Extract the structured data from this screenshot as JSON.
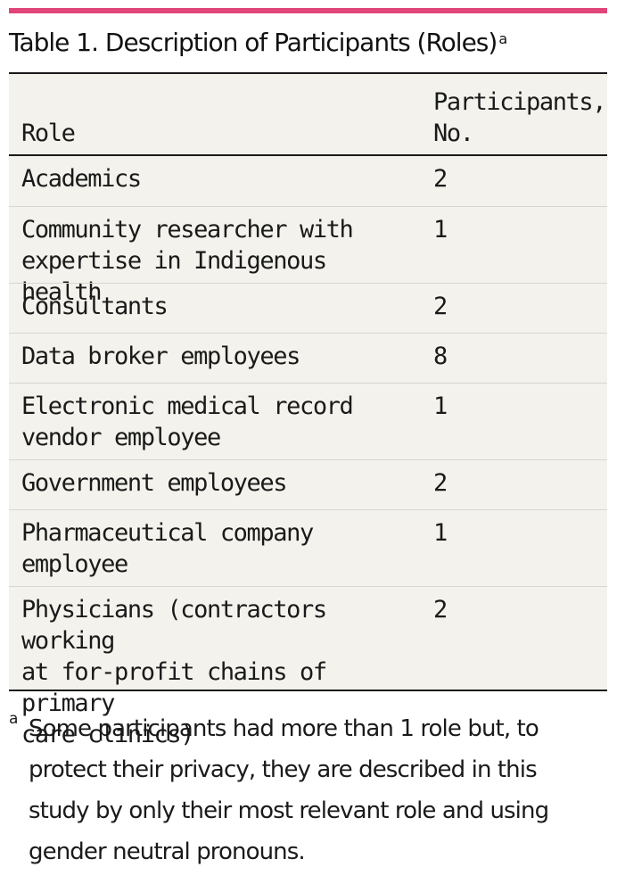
{
  "table": {
    "title": "Table 1. Description of Participants (Roles)",
    "title_footnote_mark": "a",
    "headers": {
      "role": "Role",
      "participants": "Participants,\nNo."
    },
    "rows": [
      {
        "role": "Academics",
        "count": "2"
      },
      {
        "role": "Community researcher with\nexpertise in Indigenous health",
        "count": "1"
      },
      {
        "role": "Consultants",
        "count": "2"
      },
      {
        "role": "Data broker employees",
        "count": "8"
      },
      {
        "role": "Electronic medical record\nvendor employee",
        "count": "1"
      },
      {
        "role": "Government employees",
        "count": "2"
      },
      {
        "role": "Pharmaceutical company\nemployee",
        "count": "1"
      },
      {
        "role": "Physicians (contractors working\nat for-profit chains of primary\ncare clinics)",
        "count": "2"
      }
    ],
    "footnote": {
      "mark": "a",
      "text": "Some participants had more than 1 role but, to protect their privacy, they are described in this study by only their most relevant role and using gender neutral pronouns."
    }
  },
  "colors": {
    "accent_rule": "#e0457a",
    "table_background": "#f3f2ec"
  }
}
